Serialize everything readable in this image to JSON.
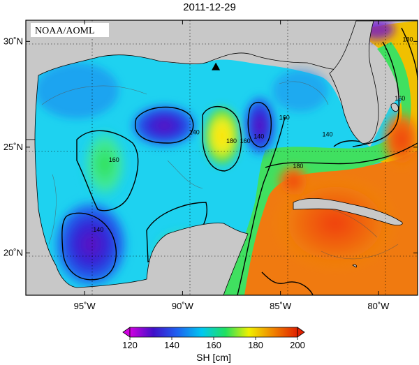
{
  "title": "2011-12-29",
  "credit": "NOAA/AOML",
  "colors": {
    "land": "#c8c8c8",
    "frame": "#000000",
    "gradient": [
      "#d000e0",
      "#4010c8",
      "#1e60f0",
      "#00c8f0",
      "#20e060",
      "#f0f000",
      "#f08000",
      "#e02000"
    ]
  },
  "map": {
    "lon_range": [
      -98,
      -78
    ],
    "lat_range": [
      18,
      31
    ],
    "lon_ticks": [
      {
        "value": -95,
        "label": "95˚W"
      },
      {
        "value": -90,
        "label": "90˚W"
      },
      {
        "value": -85,
        "label": "85˚W"
      },
      {
        "value": -80,
        "label": "80˚W"
      }
    ],
    "lat_ticks": [
      {
        "value": 30,
        "label": "30˚N"
      },
      {
        "value": 25,
        "label": "25˚N"
      },
      {
        "value": 20,
        "label": "20˚N"
      }
    ],
    "marker": {
      "lon": -88.3,
      "lat": 28.8,
      "shape": "triangle"
    },
    "contour_labels": [
      {
        "text": "140",
        "lon": -89.4,
        "lat": 25.6
      },
      {
        "text": "160",
        "lon": -93.5,
        "lat": 24.3
      },
      {
        "text": "180",
        "lon": -87.5,
        "lat": 25.2
      },
      {
        "text": "160",
        "lon": -86.8,
        "lat": 25.2
      },
      {
        "text": "140",
        "lon": -86.1,
        "lat": 25.4
      },
      {
        "text": "160",
        "lon": -84.8,
        "lat": 26.3
      },
      {
        "text": "180",
        "lon": -84.1,
        "lat": 24.0
      },
      {
        "text": "140",
        "lon": -82.6,
        "lat": 25.5
      },
      {
        "text": "140",
        "lon": -94.3,
        "lat": 21.0
      },
      {
        "text": "160",
        "lon": -78.9,
        "lat": 27.2
      },
      {
        "text": "180",
        "lon": -78.5,
        "lat": 30.0
      }
    ]
  },
  "colorbar": {
    "min": 120,
    "max": 200,
    "ticks": [
      "120",
      "140",
      "160",
      "180",
      "200"
    ],
    "label": "SH [cm]"
  }
}
